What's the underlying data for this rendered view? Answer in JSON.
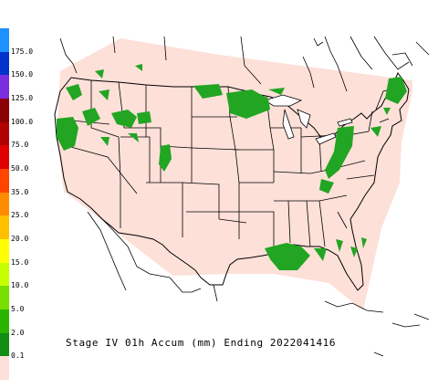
{
  "caption": "Stage IV 01h Accum (mm) Ending 2022041416",
  "legend": [
    {
      "label": "175.0",
      "color": "#1e90ff"
    },
    {
      "label": "150.0",
      "color": "#0033cc"
    },
    {
      "label": "125.0",
      "color": "#7b2ee0"
    },
    {
      "label": "100.0",
      "color": "#8b0000"
    },
    {
      "label": "75.0",
      "color": "#b00000"
    },
    {
      "label": "50.0",
      "color": "#e00000"
    },
    {
      "label": "35.0",
      "color": "#ff4500"
    },
    {
      "label": "25.0",
      "color": "#ff8c00"
    },
    {
      "label": "20.0",
      "color": "#ffc000"
    },
    {
      "label": "15.0",
      "color": "#ffff00"
    },
    {
      "label": "10.0",
      "color": "#c8ff00"
    },
    {
      "label": "5.0",
      "color": "#78e000"
    },
    {
      "label": "2.0",
      "color": "#2ab400"
    },
    {
      "label": "0.1",
      "color": "#128c12"
    },
    {
      "label": "",
      "color": "#fde0d8"
    }
  ],
  "colors": {
    "coverage": "#fde0d8",
    "precip": "#22a522",
    "lines": "#000000"
  }
}
